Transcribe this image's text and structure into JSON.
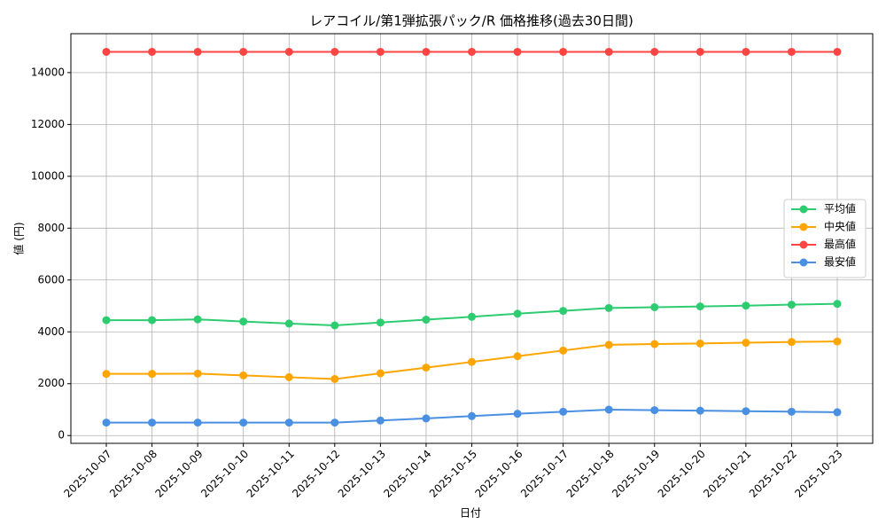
{
  "chart_data": {
    "type": "line",
    "title": "レアコイル/第1弾拡張パック/R 価格推移(過去30日間)",
    "x_label": "日付",
    "y_label": "値 (円)",
    "categories": [
      "2025-10-07",
      "2025-10-08",
      "2025-10-09",
      "2025-10-10",
      "2025-10-11",
      "2025-10-12",
      "2025-10-13",
      "2025-10-14",
      "2025-10-15",
      "2025-10-16",
      "2025-10-17",
      "2025-10-18",
      "2025-10-19",
      "2025-10-20",
      "2025-10-21",
      "2025-10-22",
      "2025-10-23"
    ],
    "series": [
      {
        "name": "平均値",
        "color": "#2ecc71",
        "values": [
          4450,
          4450,
          4480,
          4400,
          4320,
          4250,
          4360,
          4470,
          4580,
          4700,
          4810,
          4920,
          4950,
          4980,
          5010,
          5050,
          5080
        ]
      },
      {
        "name": "中央値",
        "color": "#ffa500",
        "values": [
          2380,
          2380,
          2390,
          2320,
          2250,
          2180,
          2400,
          2620,
          2840,
          3060,
          3280,
          3500,
          3530,
          3550,
          3580,
          3610,
          3630
        ]
      },
      {
        "name": "最高値",
        "color": "#ff4444",
        "values": [
          14800,
          14800,
          14800,
          14800,
          14800,
          14800,
          14800,
          14800,
          14800,
          14800,
          14800,
          14800,
          14800,
          14800,
          14800,
          14800,
          14800
        ]
      },
      {
        "name": "最安値",
        "color": "#4a90e2",
        "values": [
          500,
          500,
          500,
          500,
          500,
          500,
          580,
          660,
          750,
          840,
          920,
          1000,
          980,
          960,
          940,
          920,
          900
        ]
      }
    ],
    "ylim": [
      -300,
      15500
    ],
    "yticks": [
      0,
      2000,
      4000,
      6000,
      8000,
      10000,
      12000,
      14000
    ],
    "grid": true,
    "legend": "center right"
  }
}
